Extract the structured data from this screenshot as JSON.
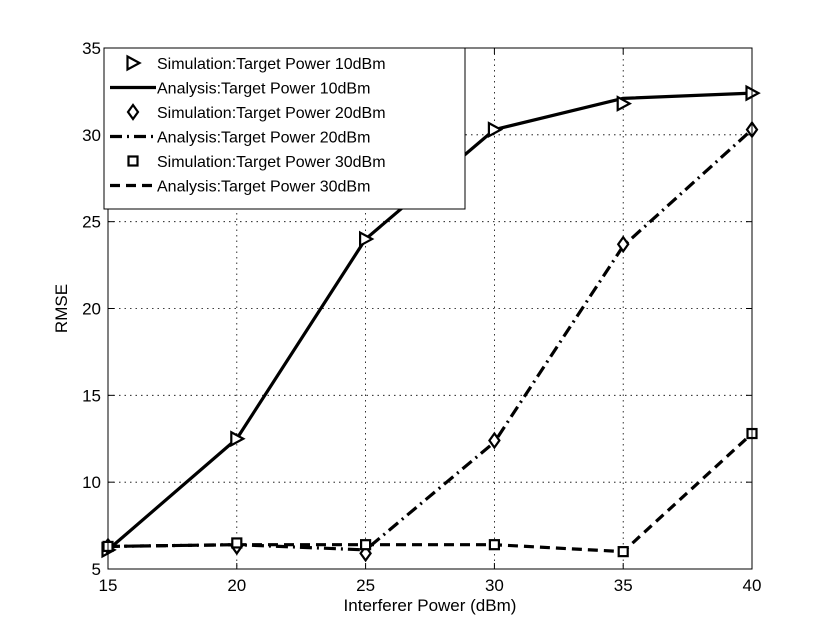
{
  "chart_data": {
    "type": "line",
    "title": "",
    "xlabel": "Interferer Power (dBm)",
    "ylabel": "RMSE",
    "xlim": [
      15,
      40
    ],
    "ylim": [
      5,
      35
    ],
    "xticks": [
      15,
      20,
      25,
      30,
      35,
      40
    ],
    "yticks": [
      5,
      10,
      15,
      20,
      25,
      30,
      35
    ],
    "grid": true,
    "legend_position": "top-left",
    "series": [
      {
        "name": "Simulation:Target Power 10dBm",
        "kind": "markers",
        "marker": "triangle-right",
        "x": [
          15,
          20,
          25,
          30,
          35,
          40
        ],
        "values": [
          6.1,
          12.5,
          24.0,
          30.3,
          31.8,
          32.4
        ]
      },
      {
        "name": "Analysis:Target Power 10dBm",
        "kind": "line",
        "dash": "solid",
        "x": [
          15,
          20,
          25,
          30,
          35,
          40
        ],
        "values": [
          6.1,
          12.5,
          24.0,
          30.3,
          32.1,
          32.4
        ]
      },
      {
        "name": "Simulation:Target Power 20dBm",
        "kind": "markers",
        "marker": "diamond",
        "x": [
          15,
          20,
          25,
          30,
          35,
          40
        ],
        "values": [
          6.3,
          6.3,
          5.9,
          12.4,
          23.7,
          30.3
        ]
      },
      {
        "name": "Analysis:Target Power 20dBm",
        "kind": "line",
        "dash": "dashdot",
        "x": [
          15,
          20,
          25,
          30,
          35,
          40
        ],
        "values": [
          6.3,
          6.4,
          6.1,
          12.3,
          23.6,
          30.3
        ]
      },
      {
        "name": "Simulation:Target Power 30dBm",
        "kind": "markers",
        "marker": "square",
        "x": [
          15,
          20,
          25,
          30,
          35,
          40
        ],
        "values": [
          6.3,
          6.5,
          6.4,
          6.4,
          6.0,
          12.8
        ]
      },
      {
        "name": "Analysis:Target Power 30dBm",
        "kind": "line",
        "dash": "dashed",
        "x": [
          15,
          20,
          25,
          30,
          35,
          40
        ],
        "values": [
          6.3,
          6.4,
          6.4,
          6.4,
          6.0,
          12.8
        ]
      }
    ]
  }
}
